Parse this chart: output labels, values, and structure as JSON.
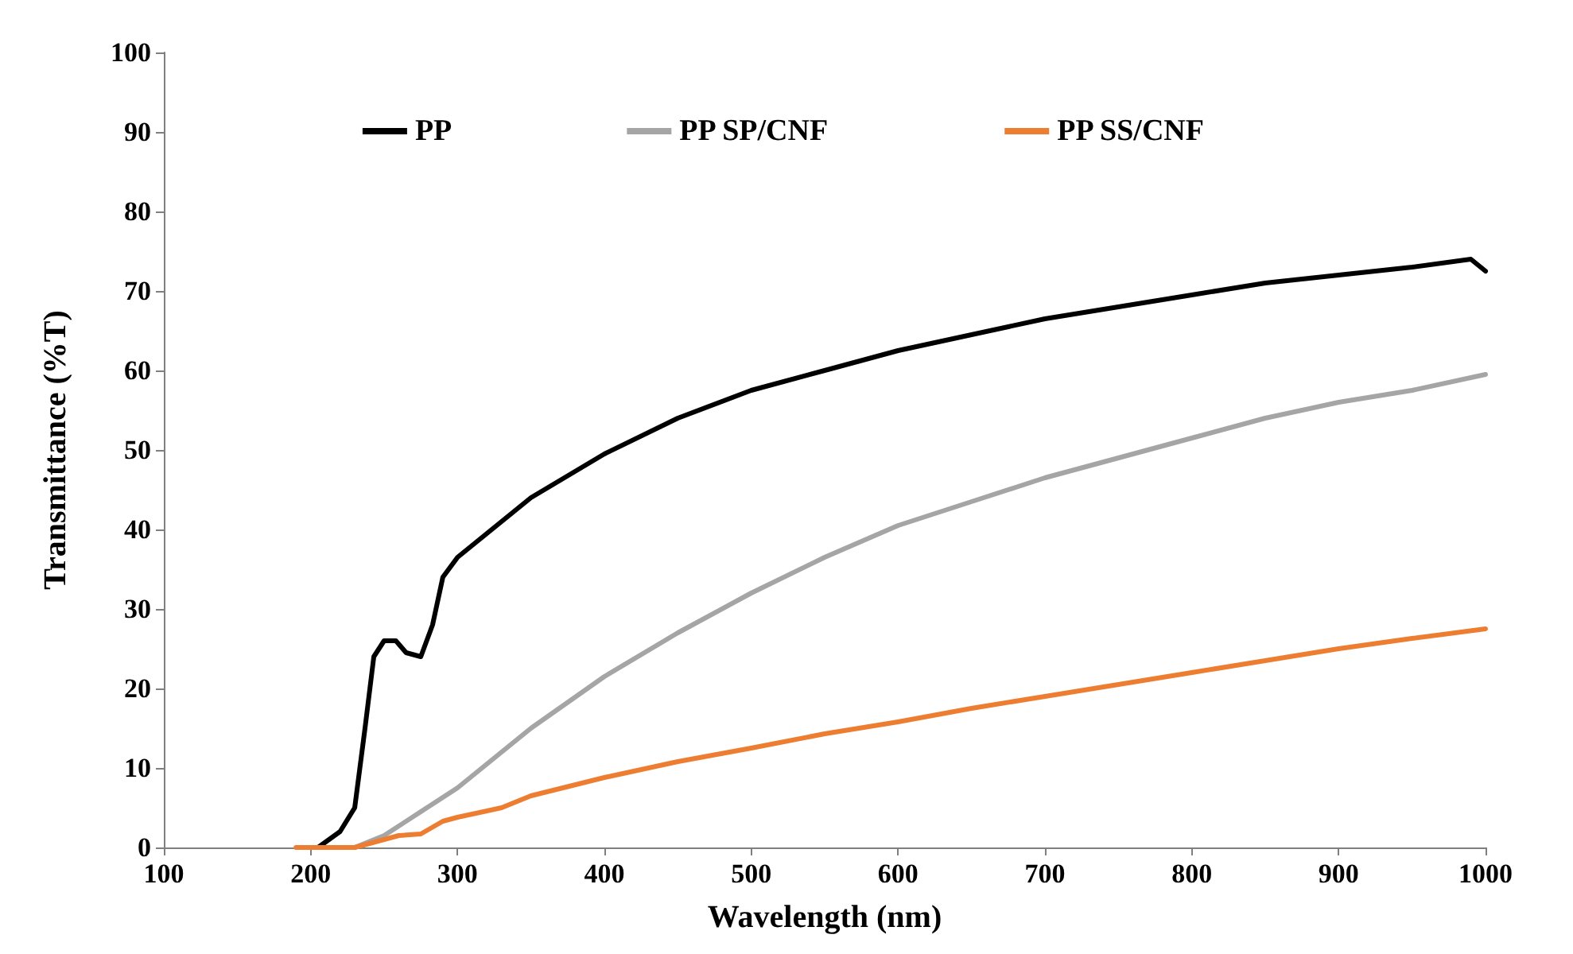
{
  "chart_data": {
    "type": "line",
    "xlabel": "Wavelength (nm)",
    "ylabel": "Transmittance (%T)",
    "xlim": [
      100,
      1000
    ],
    "xticks": [
      100,
      200,
      300,
      400,
      500,
      600,
      700,
      800,
      900,
      1000
    ],
    "ylim": [
      0,
      100
    ],
    "yticks": [
      0,
      10,
      20,
      30,
      40,
      50,
      60,
      70,
      80,
      90,
      100
    ],
    "grid": false,
    "legend": "top",
    "marker": "none",
    "line_style": "solid",
    "series": [
      {
        "name": "PP",
        "color": "#000000",
        "x": [
          205,
          220,
          230,
          237,
          243,
          250,
          258,
          265,
          275,
          283,
          290,
          300,
          320,
          350,
          400,
          450,
          500,
          550,
          600,
          650,
          700,
          750,
          800,
          850,
          900,
          950,
          990,
          1000
        ],
        "values": [
          0,
          2,
          5,
          15,
          24,
          26,
          26,
          24.5,
          24,
          28,
          34,
          36.5,
          39.5,
          44,
          49.5,
          54,
          57.5,
          60,
          62.5,
          64.5,
          66.5,
          68,
          69.5,
          71,
          72,
          73,
          74,
          72.5
        ]
      },
      {
        "name": "PP SP/CNF",
        "color": "#a5a5a5",
        "x": [
          230,
          250,
          275,
          300,
          350,
          400,
          450,
          500,
          550,
          600,
          650,
          700,
          750,
          800,
          850,
          900,
          950,
          1000
        ],
        "values": [
          0,
          1.5,
          4.5,
          7.5,
          15,
          21.5,
          27,
          32,
          36.5,
          40.5,
          43.5,
          46.5,
          49,
          51.5,
          54,
          56,
          57.5,
          59.5
        ]
      },
      {
        "name": "PP SS/CNF",
        "color": "#ed7d31",
        "x": [
          190,
          230,
          250,
          260,
          275,
          290,
          300,
          330,
          350,
          400,
          450,
          500,
          550,
          600,
          650,
          700,
          750,
          800,
          850,
          900,
          950,
          1000
        ],
        "values": [
          0,
          0,
          1,
          1.5,
          1.7,
          3.3,
          3.8,
          5,
          6.5,
          8.8,
          10.8,
          12.5,
          14.3,
          15.8,
          17.5,
          19,
          20.5,
          22,
          23.5,
          25,
          26.3,
          27.5
        ]
      }
    ]
  }
}
